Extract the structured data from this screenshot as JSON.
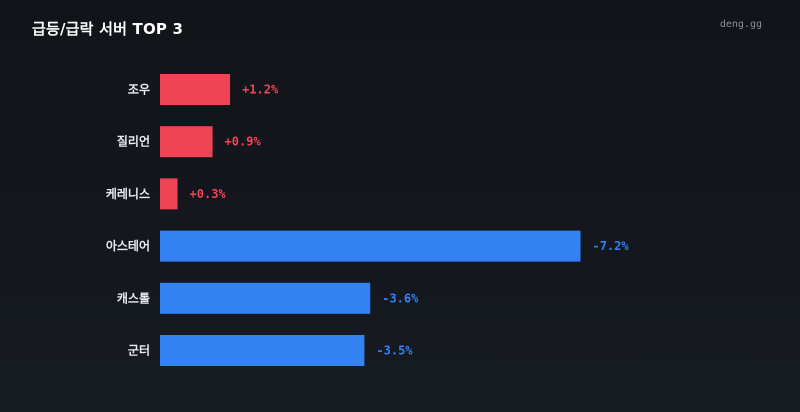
{
  "header": {
    "title": "급등/급락 서버 TOP 3",
    "brand": "deng.gg"
  },
  "colors": {
    "positive": "#ef4455",
    "negative": "#3381f2",
    "label": "#e8eaee"
  },
  "chart_data": {
    "type": "bar",
    "orientation": "horizontal",
    "title": "급등/급락 서버 TOP 3",
    "categories": [
      "조우",
      "질리언",
      "케레니스",
      "아스테어",
      "캐스톨",
      "군터"
    ],
    "values": [
      1.2,
      0.9,
      0.3,
      -7.2,
      -3.6,
      -3.5
    ],
    "value_labels": [
      "+1.2%",
      "+0.9%",
      "+0.3%",
      "-7.2%",
      "-3.6%",
      "-3.5%"
    ],
    "unit": "%",
    "grid": false,
    "legend": "none"
  }
}
